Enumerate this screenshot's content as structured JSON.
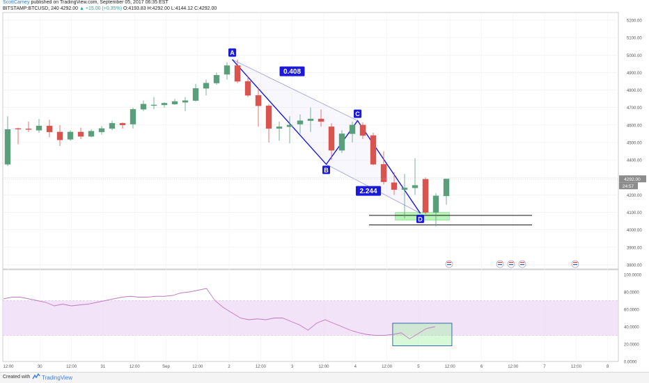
{
  "header": {
    "author": "ScottCarney",
    "published": "published on TradingView.com, September 05, 2017 06:35 EST",
    "symbol": "BITSTAMP:BTCUSD, 240",
    "last": "4292.00",
    "change": "▲ +15.00 (+0.35%)",
    "ohlc": "O:4193.83 H:4292.00 L:4144.12 C:4292.00"
  },
  "footer": {
    "created_with": "Created with",
    "brand": "TradingView"
  },
  "colors": {
    "up": "#5a9f7b",
    "down": "#d9534f",
    "pattern": "#1a1ad8",
    "pattern_fill": "#c9c9f4",
    "zone": "#90ee90",
    "rsi_band": "#f0dcf8",
    "rsi_line": "#c277c3",
    "rsi_box": "#205d9e",
    "price_tag": "#8c8c8c"
  },
  "chart_data": [
    {
      "type": "candlestick",
      "title": "BITSTAMP:BTCUSD, 240",
      "y_range": [
        3780,
        5220
      ],
      "y_ticks": [
        "5200.00",
        "5100.00",
        "5000.00",
        "4900.00",
        "4800.00",
        "4700.00",
        "4600.00",
        "4500.00",
        "4400.00",
        "4300.00",
        "4200.00",
        "4100.00",
        "4000.00",
        "3900.00",
        "3800.00"
      ],
      "x_ticks": [
        "12:00",
        "30",
        "12:00",
        "31",
        "12:00",
        "Sep",
        "12:00",
        "2",
        "12:00",
        "3",
        "12:00",
        "4",
        "12:00",
        "5",
        "12:00",
        "6",
        "12:00",
        "7",
        "12:00",
        "8"
      ],
      "last_price_label": "4292.00",
      "countdown_label": "24:57",
      "candles": [
        {
          "o": 4375,
          "h": 4650,
          "l": 4365,
          "c": 4575
        },
        {
          "o": 4580,
          "h": 4585,
          "l": 4490,
          "c": 4578
        },
        {
          "o": 4578,
          "h": 4620,
          "l": 4560,
          "c": 4575
        },
        {
          "o": 4570,
          "h": 4635,
          "l": 4555,
          "c": 4595
        },
        {
          "o": 4595,
          "h": 4630,
          "l": 4530,
          "c": 4560
        },
        {
          "o": 4560,
          "h": 4600,
          "l": 4480,
          "c": 4515
        },
        {
          "o": 4518,
          "h": 4570,
          "l": 4510,
          "c": 4560
        },
        {
          "o": 4560,
          "h": 4585,
          "l": 4520,
          "c": 4535
        },
        {
          "o": 4535,
          "h": 4575,
          "l": 4530,
          "c": 4565
        },
        {
          "o": 4560,
          "h": 4595,
          "l": 4545,
          "c": 4580
        },
        {
          "o": 4580,
          "h": 4625,
          "l": 4570,
          "c": 4610
        },
        {
          "o": 4610,
          "h": 4615,
          "l": 4580,
          "c": 4600
        },
        {
          "o": 4605,
          "h": 4700,
          "l": 4580,
          "c": 4690
        },
        {
          "o": 4690,
          "h": 4740,
          "l": 4680,
          "c": 4720
        },
        {
          "o": 4715,
          "h": 4760,
          "l": 4690,
          "c": 4715
        },
        {
          "o": 4715,
          "h": 4730,
          "l": 4700,
          "c": 4725
        },
        {
          "o": 4720,
          "h": 4750,
          "l": 4715,
          "c": 4735
        },
        {
          "o": 4730,
          "h": 4760,
          "l": 4680,
          "c": 4740
        },
        {
          "o": 4740,
          "h": 4835,
          "l": 4735,
          "c": 4810
        },
        {
          "o": 4810,
          "h": 4860,
          "l": 4770,
          "c": 4840
        },
        {
          "o": 4840,
          "h": 4900,
          "l": 4830,
          "c": 4885
        },
        {
          "o": 4890,
          "h": 4960,
          "l": 4860,
          "c": 4940
        },
        {
          "o": 4940,
          "h": 4975,
          "l": 4840,
          "c": 4850
        },
        {
          "o": 4850,
          "h": 4880,
          "l": 4760,
          "c": 4770
        },
        {
          "o": 4770,
          "h": 4810,
          "l": 4590,
          "c": 4710
        },
        {
          "o": 4710,
          "h": 4720,
          "l": 4500,
          "c": 4580
        },
        {
          "o": 4580,
          "h": 4620,
          "l": 4510,
          "c": 4590
        },
        {
          "o": 4590,
          "h": 4650,
          "l": 4495,
          "c": 4600
        },
        {
          "o": 4605,
          "h": 4660,
          "l": 4550,
          "c": 4625
        },
        {
          "o": 4625,
          "h": 4700,
          "l": 4560,
          "c": 4635
        },
        {
          "o": 4635,
          "h": 4690,
          "l": 4590,
          "c": 4620
        },
        {
          "o": 4590,
          "h": 4610,
          "l": 4400,
          "c": 4455
        },
        {
          "o": 4455,
          "h": 4570,
          "l": 4440,
          "c": 4550
        },
        {
          "o": 4550,
          "h": 4620,
          "l": 4500,
          "c": 4600
        },
        {
          "o": 4600,
          "h": 4615,
          "l": 4520,
          "c": 4540
        },
        {
          "o": 4540,
          "h": 4555,
          "l": 4370,
          "c": 4375
        },
        {
          "o": 4375,
          "h": 4450,
          "l": 4260,
          "c": 4275
        },
        {
          "o": 4270,
          "h": 4330,
          "l": 4200,
          "c": 4230
        },
        {
          "o": 4230,
          "h": 4320,
          "l": 4065,
          "c": 4240
        },
        {
          "o": 4240,
          "h": 4410,
          "l": 4200,
          "c": 4255
        },
        {
          "o": 4290,
          "h": 4300,
          "l": 4090,
          "c": 4100
        },
        {
          "o": 4100,
          "h": 4210,
          "l": 4020,
          "c": 4195
        },
        {
          "o": 4194,
          "h": 4292,
          "l": 4144,
          "c": 4292
        }
      ],
      "harmonic_pattern": {
        "points": [
          {
            "label": "A",
            "bar": 21.5,
            "price": 4975
          },
          {
            "label": "B",
            "bar": 30.5,
            "price": 4375
          },
          {
            "label": "C",
            "bar": 33.5,
            "price": 4625
          },
          {
            "label": "D",
            "bar": 39.5,
            "price": 4095
          }
        ],
        "ratios": [
          "0.408",
          "2.244"
        ]
      },
      "support_zone": {
        "price_low": 4060,
        "price_high": 4090
      },
      "horizontal_lines": [
        4083,
        4028
      ]
    },
    {
      "type": "line",
      "title": "",
      "y_range": [
        0,
        100
      ],
      "y_ticks": [
        "100.0000",
        "80.0000",
        "60.0000",
        "40.0000",
        "20.0000",
        "0.0000"
      ],
      "band": [
        30,
        70
      ],
      "values": [
        72,
        74,
        74,
        72,
        70,
        68,
        64,
        66,
        64,
        65,
        66,
        68,
        70,
        72,
        74,
        75,
        74,
        74,
        75,
        75,
        76,
        79,
        80,
        82,
        84,
        70,
        62,
        56,
        50,
        48,
        49,
        48,
        50,
        50,
        46,
        42,
        36,
        44,
        48,
        44,
        40,
        36,
        33,
        31,
        30,
        30,
        31,
        33,
        26,
        32,
        38,
        40
      ],
      "highlight_box": {
        "from_index": 46,
        "to_index": 50,
        "y_low": 18,
        "y_high": 44
      }
    }
  ]
}
